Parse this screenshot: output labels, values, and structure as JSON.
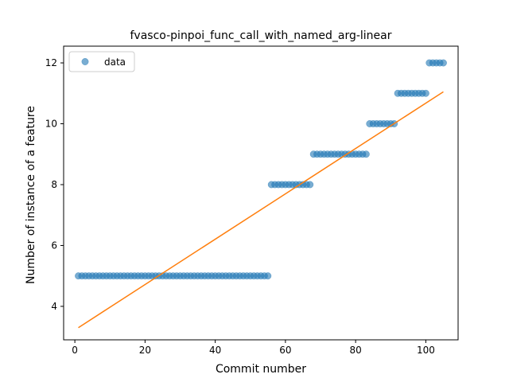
{
  "chart_data": {
    "type": "scatter",
    "title": "fvasco-pinpoi_func_call_with_named_arg-linear",
    "xlabel": "Commit number",
    "ylabel": "Number of instance of a feature",
    "xlim": [
      -3.2,
      109.2
    ],
    "ylim": [
      2.9,
      12.55
    ],
    "xticks": [
      0,
      20,
      40,
      60,
      80,
      100
    ],
    "yticks": [
      4,
      6,
      8,
      10,
      12
    ],
    "grid": false,
    "legend": {
      "placement": "top-left",
      "entries": [
        "data"
      ]
    },
    "colors": {
      "data": "#1f77b4",
      "fit": "#ff7f0e"
    },
    "series": [
      {
        "name": "data",
        "kind": "scatter",
        "segments": [
          {
            "x_start": 1,
            "x_end": 55,
            "y": 5
          },
          {
            "x_start": 56,
            "x_end": 67,
            "y": 8
          },
          {
            "x_start": 68,
            "x_end": 83,
            "y": 9
          },
          {
            "x_start": 84,
            "x_end": 91,
            "y": 10
          },
          {
            "x_start": 92,
            "x_end": 100,
            "y": 11
          },
          {
            "x_start": 101,
            "x_end": 105,
            "y": 12
          }
        ]
      },
      {
        "kind": "line",
        "points": [
          [
            1,
            3.3
          ],
          [
            105,
            11.05
          ]
        ]
      }
    ]
  }
}
